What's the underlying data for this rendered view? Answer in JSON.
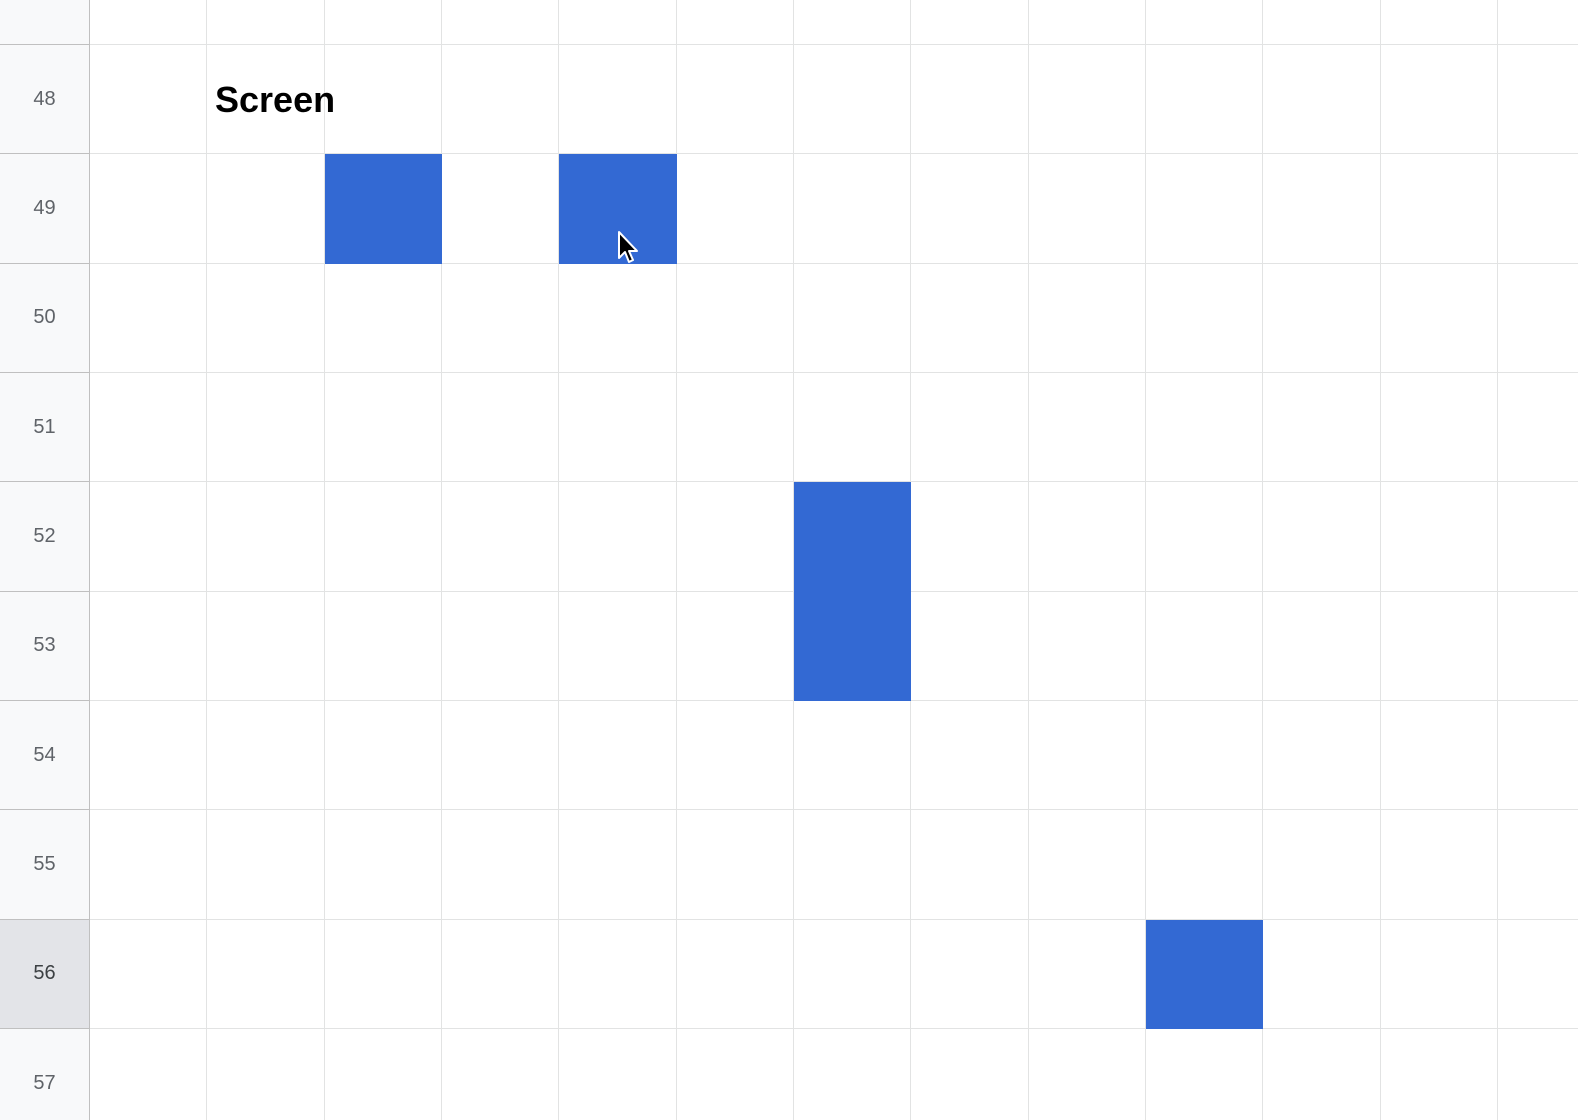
{
  "sheet": {
    "rows": [
      {
        "label": ""
      },
      {
        "label": "48"
      },
      {
        "label": "49"
      },
      {
        "label": "50"
      },
      {
        "label": "51"
      },
      {
        "label": "52"
      },
      {
        "label": "53"
      },
      {
        "label": "54"
      },
      {
        "label": "55"
      },
      {
        "label": "56"
      },
      {
        "label": "57"
      }
    ],
    "selected_row": "56",
    "fill_color": "#3369d3",
    "filled_cells": [
      {
        "row": "49",
        "col": 2
      },
      {
        "row": "49",
        "col": 4
      },
      {
        "row": "52",
        "col": 6
      },
      {
        "row": "53",
        "col": 6
      },
      {
        "row": "56",
        "col": 9
      }
    ],
    "text_cells": [
      {
        "row": "48",
        "col": 1,
        "text": "Screen"
      }
    ]
  },
  "cursor": {
    "icon": "mouse-pointer-icon"
  }
}
